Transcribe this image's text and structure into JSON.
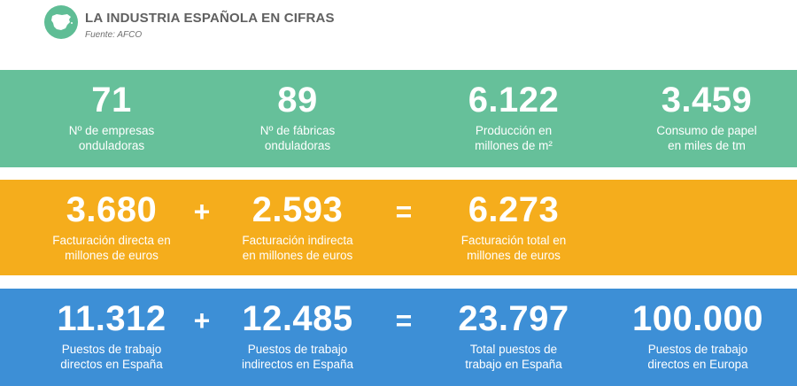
{
  "header": {
    "title": "LA INDUSTRIA ESPAÑOLA EN CIFRAS",
    "source": "Fuente: AFCO",
    "logo_icon": "spain-map-icon"
  },
  "colors": {
    "green": "#66c09a",
    "orange": "#f5ad1c",
    "blue": "#3d8fd6"
  },
  "row1": {
    "companies": {
      "value": "71",
      "label": "Nº de empresas\nonduladoras"
    },
    "factories": {
      "value": "89",
      "label": "Nº de fábricas\nonduladoras"
    },
    "production": {
      "value": "6.122",
      "label": "Producción en\nmillones de m²"
    },
    "paper": {
      "value": "3.459",
      "label": "Consumo de papel\nen miles de tm"
    }
  },
  "row2": {
    "direct": {
      "value": "3.680",
      "label": "Facturación directa en\nmillones de euros"
    },
    "plus": "+",
    "indirect": {
      "value": "2.593",
      "label": "Facturación indirecta\nen millones de euros"
    },
    "equals": "=",
    "total": {
      "value": "6.273",
      "label": "Facturación total en\nmillones de euros"
    }
  },
  "row3": {
    "direct_jobs": {
      "value": "11.312",
      "label": "Puestos de trabajo\ndirectos en España"
    },
    "plus": "+",
    "indirect_jobs": {
      "value": "12.485",
      "label": "Puestos de trabajo\nindirectos en España"
    },
    "equals": "=",
    "total_jobs": {
      "value": "23.797",
      "label": "Total puestos de\ntrabajo en España"
    },
    "europe_jobs": {
      "value": "100.000",
      "label": "Puestos de trabajo\ndirectos en Europa"
    }
  }
}
